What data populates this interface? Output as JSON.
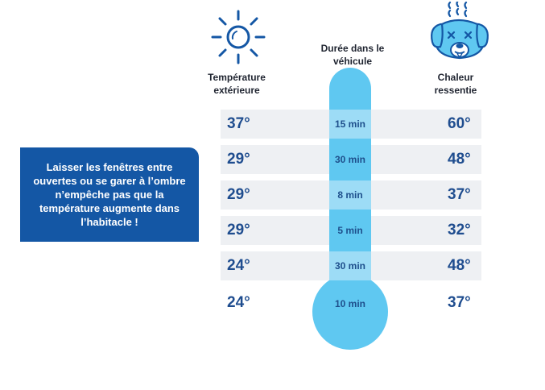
{
  "headers": {
    "outside_temp": "Température extérieure",
    "duration": "Durée dans le véhicule",
    "felt_heat": "Chaleur ressentie"
  },
  "callout": {
    "text": "Laisser les fenêtres entre ouvertes ou se garer à l’ombre n’empêche pas que la température augmente dans l’habitacle !"
  },
  "rows": [
    {
      "outside": "37°",
      "duration": "15 min",
      "felt": "60°"
    },
    {
      "outside": "29°",
      "duration": "30 min",
      "felt": "48°"
    },
    {
      "outside": "29°",
      "duration": "8 min",
      "felt": "37°"
    },
    {
      "outside": "29°",
      "duration": "5 min",
      "felt": "32°"
    },
    {
      "outside": "24°",
      "duration": "30 min",
      "felt": "48°"
    },
    {
      "outside": "24°",
      "duration": "10 min",
      "felt": "37°"
    }
  ],
  "icons": {
    "sun": "sun-icon",
    "dog": "overheated-dog-icon",
    "thermometer": "thermometer-icon"
  },
  "colors": {
    "navy": "#1457a5",
    "light_blue": "#5fc8f1",
    "pale_blue": "#9ddcf6",
    "band": "#eef0f3",
    "value_text": "#1f4d8f"
  }
}
